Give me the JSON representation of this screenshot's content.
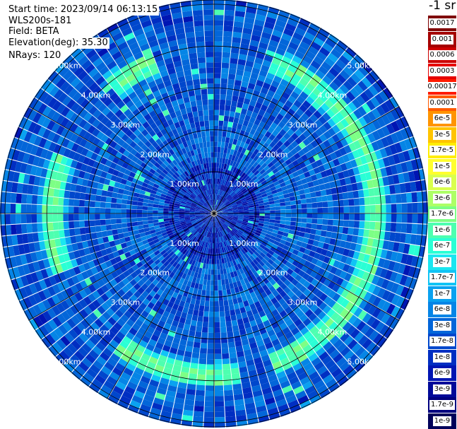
{
  "info": {
    "start_time": "Start time: 2023/09/14 06:13:15",
    "instrument": "WLS200s-181",
    "field": "Field: BETA",
    "elevation": "Elevation(deg): 35.30",
    "nrays": "NRays: 120"
  },
  "colorbar": {
    "unit": "-1 sr",
    "bins": [
      {
        "label": "0.0017",
        "color": "#7f0000"
      },
      {
        "label": "0.001",
        "color": "#a50000"
      },
      {
        "label": "0.0006",
        "color": "#cc0000"
      },
      {
        "label": "0.0003",
        "color": "#e60000"
      },
      {
        "label": "0.00017",
        "color": "#ff1a00"
      },
      {
        "label": "0.0001",
        "color": "#ff5a00"
      },
      {
        "label": "6e-5",
        "color": "#ff9400"
      },
      {
        "label": "3e-5",
        "color": "#ffc400"
      },
      {
        "label": "1.7e-5",
        "color": "#ffed00"
      },
      {
        "label": "1e-5",
        "color": "#ffff2e"
      },
      {
        "label": "6e-6",
        "color": "#d9ff4d"
      },
      {
        "label": "3e-6",
        "color": "#adff66"
      },
      {
        "label": "1.7e-6",
        "color": "#7dff85"
      },
      {
        "label": "1e-6",
        "color": "#4dffb0"
      },
      {
        "label": "6e-7",
        "color": "#2affd5"
      },
      {
        "label": "3e-7",
        "color": "#1ae6f0"
      },
      {
        "label": "1.7e-7",
        "color": "#10c4f5"
      },
      {
        "label": "1e-7",
        "color": "#0aa2f0"
      },
      {
        "label": "6e-8",
        "color": "#0585e6"
      },
      {
        "label": "3e-8",
        "color": "#0366d9"
      },
      {
        "label": "1.7e-8",
        "color": "#0047cc"
      },
      {
        "label": "1e-8",
        "color": "#002ec2"
      },
      {
        "label": "6e-9",
        "color": "#0015b3"
      },
      {
        "label": "3e-9",
        "color": "#000a99"
      },
      {
        "label": "1.7e-9",
        "color": "#00007f"
      },
      {
        "label": "1e-9",
        "color": "#00005a"
      }
    ]
  },
  "chart_data": {
    "type": "heatmap",
    "projection": "polar-ppi",
    "field": "BETA",
    "elevation_deg": 35.3,
    "nrays": 120,
    "range_max_km": 5.8,
    "range_rings_km": [
      1,
      2,
      3,
      4,
      5
    ],
    "ring_labels": [
      "1.00km",
      "2.00km",
      "3.00km",
      "4.00km",
      "5.00km"
    ],
    "azimuth_lines_deg": [
      0,
      30,
      60,
      90,
      120,
      150,
      180,
      210,
      240,
      270,
      300,
      330
    ],
    "features": {
      "background_log10_beta": -7.5,
      "enhanced_ring_range_km": 3.9,
      "enhanced_ring_log10_beta": -5.8,
      "enhanced_ring_azimuths_deg": [
        [
          20,
          160
        ],
        [
          170,
          215
        ],
        [
          250,
          290
        ],
        [
          320,
          340
        ]
      ]
    }
  }
}
